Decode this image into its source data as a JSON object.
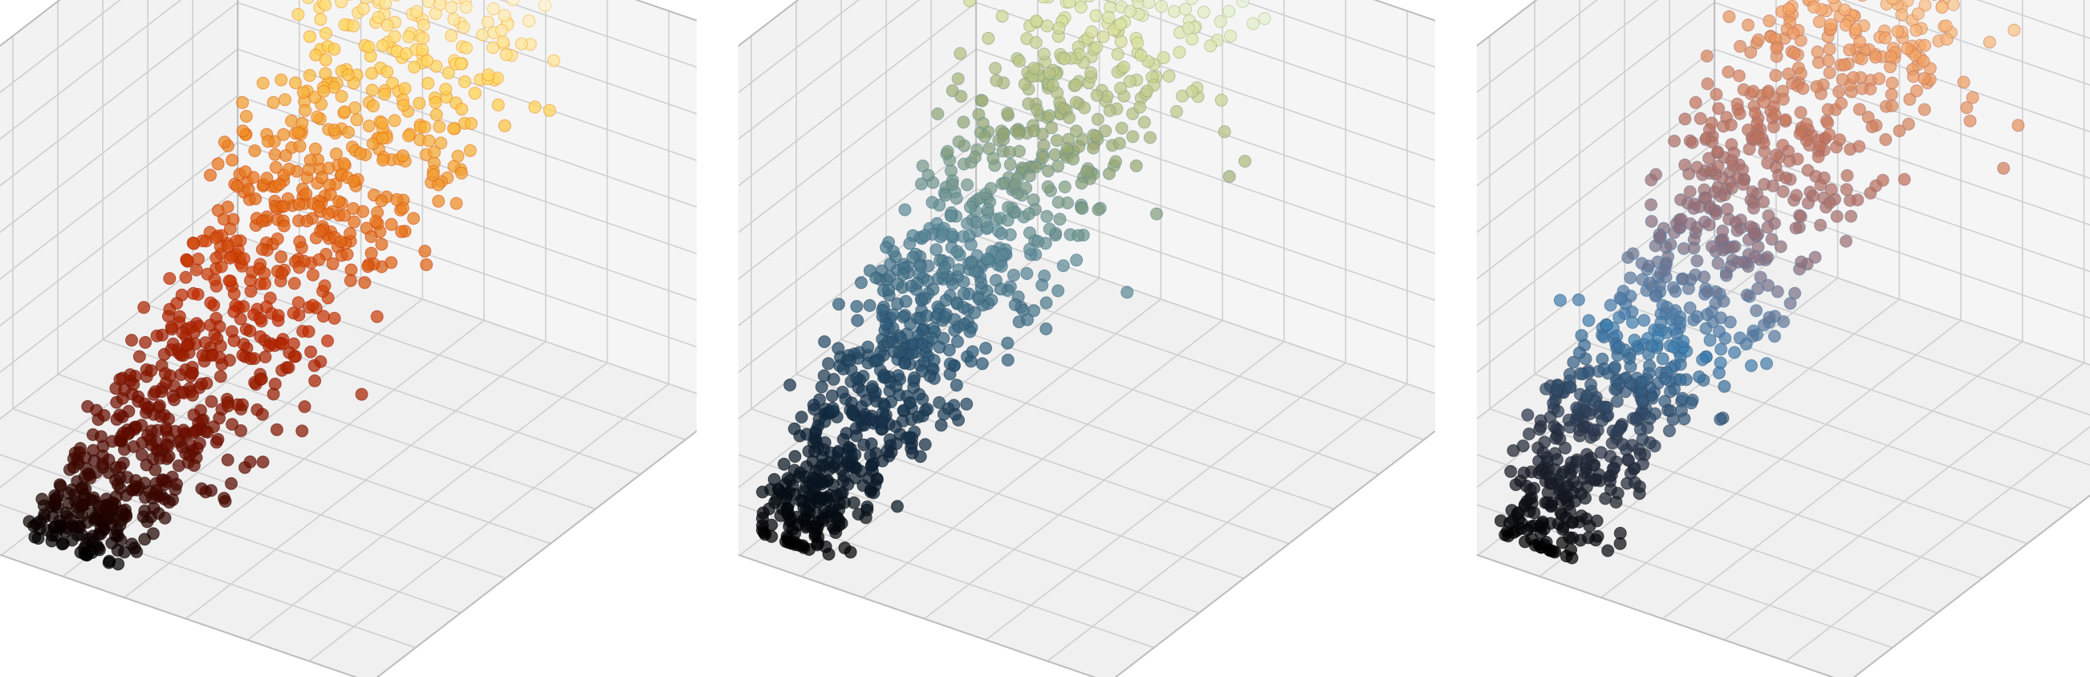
{
  "figure": {
    "background": "#ffffff"
  },
  "style": {
    "pane_colors": {
      "back": "#f2f2f2",
      "side": "#f5f5f5",
      "floor": "#f0f0f0"
    },
    "grid_color": "#cfcfcf",
    "edge_color": "#bdbdbd",
    "marker_opacity": 0.72,
    "grid": true
  },
  "chart_data": [
    {
      "type": "scatter",
      "projection": "3d",
      "title": "",
      "colormap": "black-red-orange-yellow-white",
      "color_ramp": [
        "#000000",
        "#6a0d00",
        "#c02a00",
        "#ea7a1a",
        "#ffd24a",
        "#ffffff"
      ],
      "xlim": [
        0,
        1
      ],
      "ylim": [
        0,
        1
      ],
      "zlim": [
        0,
        1
      ],
      "n_points": 1000,
      "seed": 11,
      "trend": {
        "x_power": 1.0,
        "y_spread": 0.55,
        "z_from": "x",
        "z_power": 1.35,
        "noise": 0.13
      }
    },
    {
      "type": "scatter",
      "projection": "3d",
      "title": "",
      "colormap": "black-navy-teal-olive-khaki-white",
      "color_ramp": [
        "#000000",
        "#10253a",
        "#2e5a78",
        "#5f8c98",
        "#9aa870",
        "#d8e09a",
        "#eaffff"
      ],
      "xlim": [
        0,
        1
      ],
      "ylim": [
        0,
        1
      ],
      "zlim": [
        0,
        1
      ],
      "n_points": 1000,
      "seed": 23,
      "trend": {
        "x_power": 1.2,
        "y_spread": 0.45,
        "z_from": "x",
        "z_power": 0.9,
        "noise": 0.15
      }
    },
    {
      "type": "scatter",
      "projection": "3d",
      "title": "",
      "colormap": "black-slate-blue-mauve-orange-cream",
      "color_ramp": [
        "#000000",
        "#2a3346",
        "#3f7fb0",
        "#8e6e7a",
        "#c0705a",
        "#f3a060",
        "#ffe8b0"
      ],
      "xlim": [
        0,
        1
      ],
      "ylim": [
        0,
        1
      ],
      "zlim": [
        0,
        1
      ],
      "n_points": 1000,
      "seed": 37,
      "trend": {
        "x_power": 1.1,
        "y_spread": 0.5,
        "z_from": "x",
        "z_power": 0.85,
        "noise": 0.17
      }
    }
  ]
}
